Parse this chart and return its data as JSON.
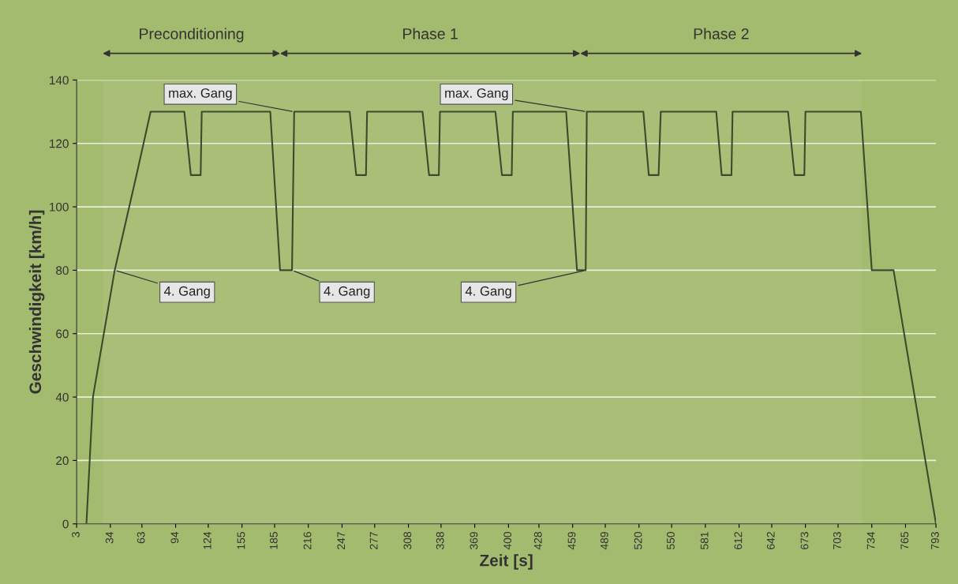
{
  "chart_data": {
    "type": "line",
    "xlabel": "Zeit [s]",
    "ylabel": "Geschwindigkeit [km/h]",
    "x": [
      12,
      15,
      18,
      38,
      58,
      71,
      102,
      108,
      117,
      118,
      181,
      190,
      201,
      203,
      254,
      260,
      269,
      270,
      321,
      327,
      336,
      337,
      388,
      394,
      403,
      404,
      453,
      463,
      471,
      472,
      524,
      529,
      538,
      540,
      591,
      596,
      605,
      606,
      657,
      663,
      672,
      673,
      724,
      734,
      754,
      793
    ],
    "series": [
      {
        "color": "#3b4a2c",
        "values": [
          0,
          20,
          40,
          80,
          110,
          130,
          130,
          110,
          110,
          130,
          130,
          80,
          80,
          130,
          130,
          110,
          110,
          130,
          130,
          110,
          110,
          130,
          130,
          110,
          110,
          130,
          130,
          80,
          80,
          130,
          130,
          110,
          110,
          130,
          130,
          110,
          110,
          130,
          130,
          110,
          110,
          130,
          130,
          80,
          80,
          0
        ]
      }
    ],
    "xlim": [
      3,
      793
    ],
    "xticks": [
      3,
      34,
      63,
      94,
      124,
      155,
      185,
      216,
      247,
      277,
      308,
      338,
      369,
      400,
      428,
      459,
      489,
      520,
      550,
      581,
      612,
      642,
      673,
      703,
      734,
      765,
      793
    ],
    "ylim": [
      0,
      140
    ],
    "yticks": [
      0,
      20,
      40,
      60,
      80,
      100,
      120,
      140
    ],
    "grid": "y",
    "marker": "none",
    "line_style": "solid",
    "annotations": [
      {
        "text": "4. Gang",
        "x": 38,
        "y": 80
      },
      {
        "text": "max. Gang",
        "x": 203,
        "y": 130
      },
      {
        "text": "4. Gang",
        "x": 201,
        "y": 80
      },
      {
        "text": "max. Gang",
        "x": 472,
        "y": 130
      },
      {
        "text": "4. Gang",
        "x": 471,
        "y": 80
      }
    ],
    "bands": [
      {
        "axis": "x",
        "from": 27,
        "to": 190,
        "label": "Preconditioning"
      },
      {
        "axis": "x",
        "from": 190,
        "to": 466,
        "label": "Phase 1"
      },
      {
        "axis": "x",
        "from": 466,
        "to": 725,
        "label": "Phase 2"
      }
    ]
  }
}
